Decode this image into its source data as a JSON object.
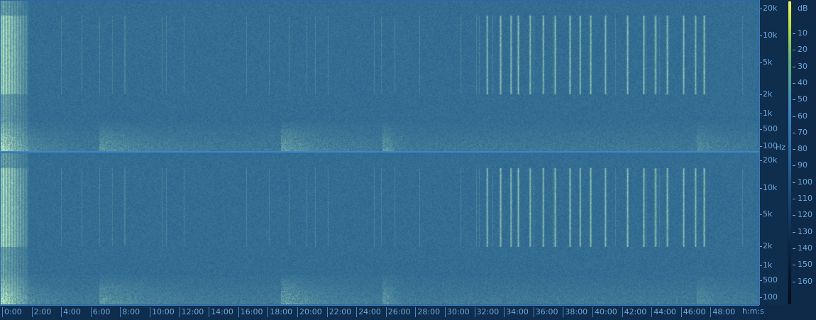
{
  "spectrogram": {
    "channels": 2,
    "frequency_labels": [
      "20k",
      "10k",
      "5k",
      "2k",
      "1k",
      "500",
      "100"
    ],
    "frequency_unit": "Hz",
    "db_scale_title": "dB",
    "db_labels": [
      "10",
      "20",
      "30",
      "40",
      "50",
      "60",
      "70",
      "80",
      "90",
      "100",
      "110",
      "120",
      "130",
      "140",
      "150",
      "160"
    ],
    "time_labels": [
      "0:00",
      "2:00",
      "4:00",
      "6:00",
      "8:00",
      "10:00",
      "12:00",
      "14:00",
      "16:00",
      "18:00",
      "20:00",
      "22:00",
      "24:00",
      "26:00",
      "28:00",
      "30:00",
      "32:00",
      "34:00",
      "36:00",
      "38:00",
      "40:00",
      "42:00",
      "44:00",
      "46:00",
      "48:00"
    ],
    "time_unit": "h:m:s",
    "colors": {
      "background": "#1f5b90",
      "axis": "#0f2d4d",
      "label": "#6fa8dc",
      "hot": "#f4f860"
    }
  }
}
